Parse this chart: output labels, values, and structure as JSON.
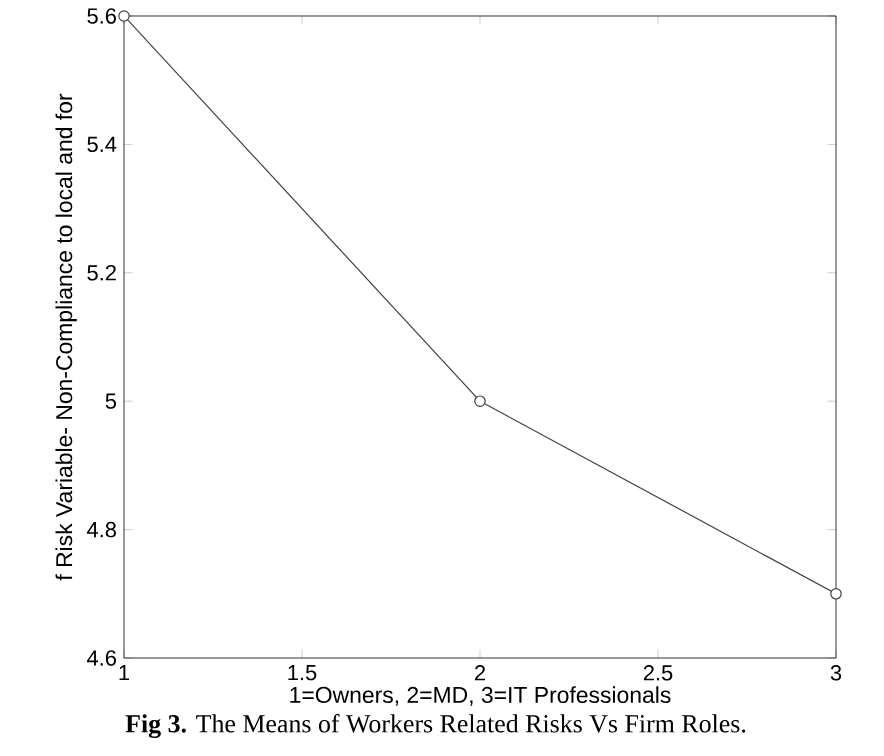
{
  "chart_data": {
    "type": "line",
    "xlabel": "1=Owners, 2=MD, 3=IT Professionals",
    "ylabel": "f Risk Variable- Non-Compliance to local and for",
    "x": [
      1,
      2,
      3
    ],
    "series": [
      {
        "color": "#404040",
        "values": [
          5.6,
          5.0,
          4.7
        ]
      }
    ],
    "xlim": [
      1,
      3
    ],
    "xticks": [
      1,
      1.5,
      2,
      2.5,
      3
    ],
    "ylim": [
      4.6,
      5.6
    ],
    "yticks": [
      4.6,
      4.8,
      5,
      5.2,
      5.4,
      5.6
    ],
    "grid": false,
    "marker": "circle",
    "line_style": "solid",
    "annotations": [
      "**Fig 3.** The Means of Workers Related Risks Vs Firm Roles."
    ]
  }
}
